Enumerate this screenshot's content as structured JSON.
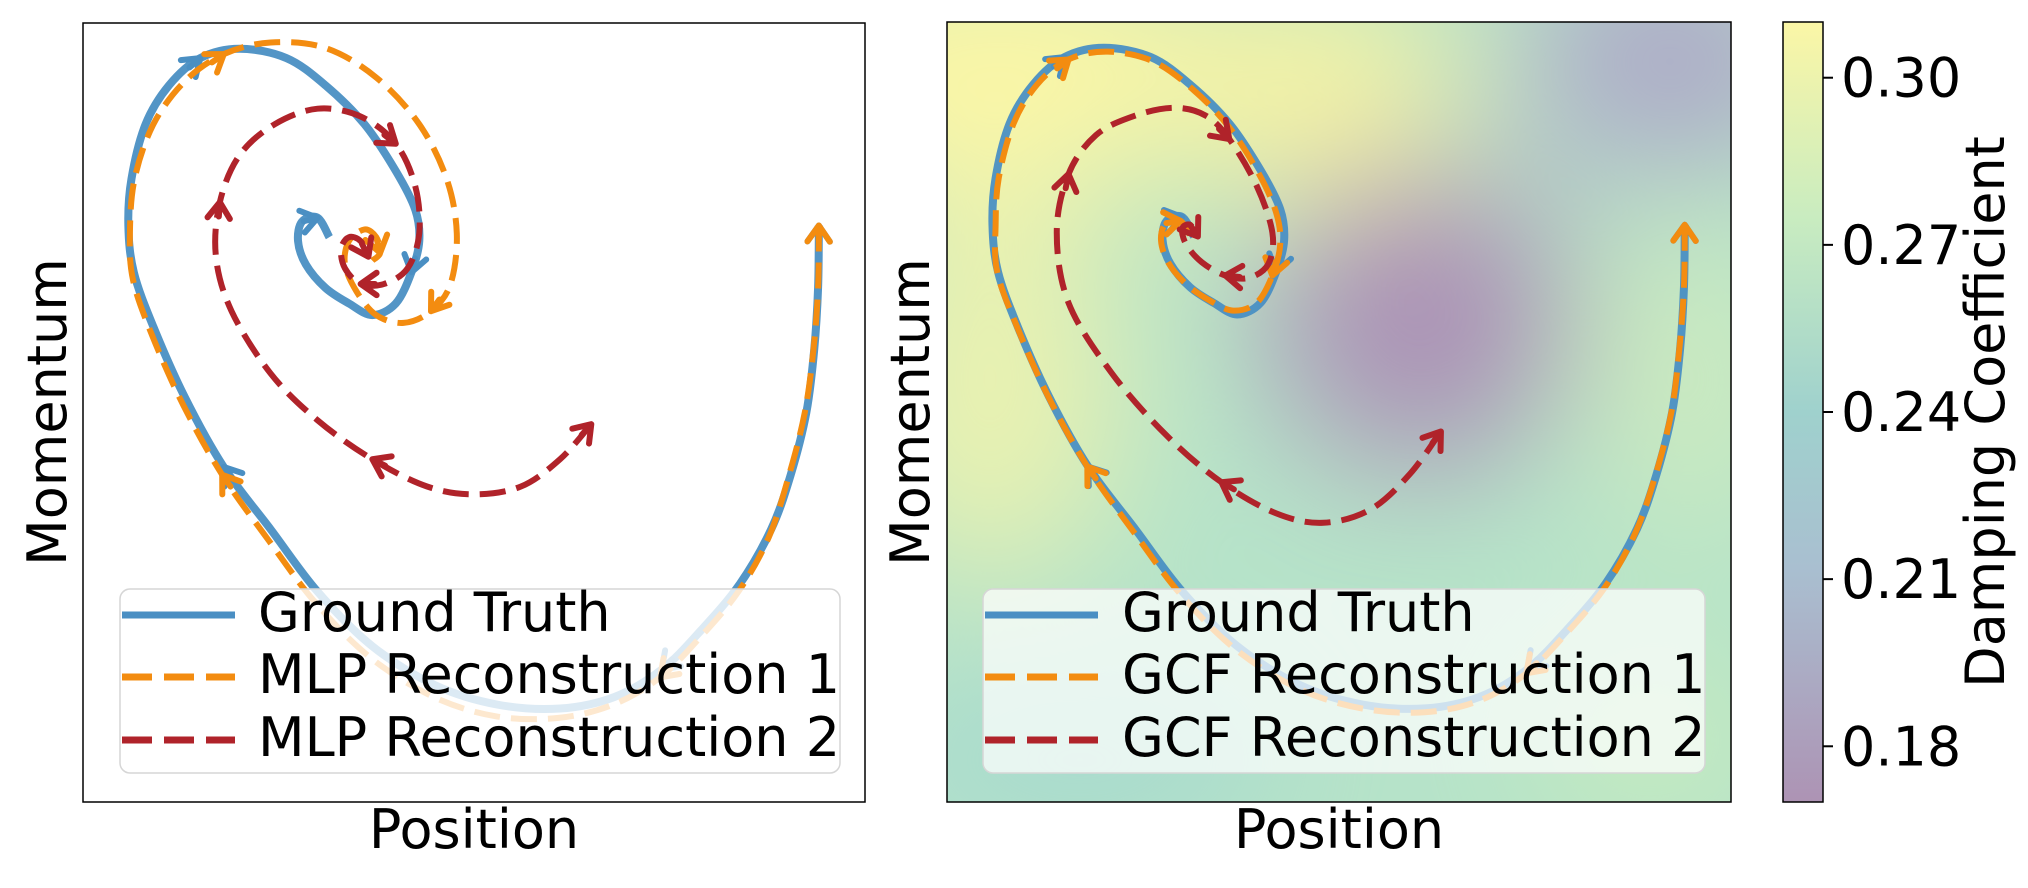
{
  "colors": {
    "ground_truth": "#4a8fc3",
    "reconstruction_1": "#f38c10",
    "reconstruction_2": "#b0232a",
    "colormap": [
      "#ad93b4",
      "#9dc6d0",
      "#a9dcc9",
      "#cdeec2",
      "#faf5a7"
    ]
  },
  "chart_data": [
    {
      "type": "line",
      "panel": "left",
      "xlabel": "Position",
      "ylabel": "Momentum",
      "xticks": "none",
      "yticks": "none",
      "grid": false,
      "legend_position": "lower-center",
      "legend": [
        "Ground Truth",
        "MLP Reconstruction 1",
        "MLP Reconstruction 2"
      ],
      "xlim": [
        0,
        1
      ],
      "ylim": [
        0,
        1
      ],
      "series": [
        {
          "name": "Ground Truth",
          "style": "solid",
          "x": [
            0.941,
            0.94,
            0.935,
            0.925,
            0.905,
            0.88,
            0.84,
            0.79,
            0.74,
            0.68,
            0.61,
            0.53,
            0.45,
            0.37,
            0.3,
            0.24,
            0.18,
            0.13,
            0.09,
            0.065,
            0.058,
            0.062,
            0.08,
            0.11,
            0.15,
            0.2,
            0.26,
            0.31,
            0.36,
            0.4,
            0.425,
            0.43,
            0.42,
            0.4,
            0.37,
            0.34,
            0.31,
            0.285,
            0.275,
            0.28,
            0.3,
            0.315
          ],
          "y": [
            0.74,
            0.66,
            0.58,
            0.5,
            0.42,
            0.35,
            0.28,
            0.22,
            0.17,
            0.135,
            0.12,
            0.125,
            0.15,
            0.2,
            0.27,
            0.35,
            0.43,
            0.52,
            0.61,
            0.68,
            0.74,
            0.8,
            0.87,
            0.92,
            0.955,
            0.967,
            0.955,
            0.92,
            0.87,
            0.81,
            0.76,
            0.72,
            0.68,
            0.64,
            0.625,
            0.64,
            0.66,
            0.69,
            0.72,
            0.745,
            0.75,
            0.725
          ]
        },
        {
          "name": "MLP Reconstruction 1",
          "style": "dashed",
          "x": [
            0.941,
            0.94,
            0.934,
            0.923,
            0.903,
            0.877,
            0.838,
            0.788,
            0.738,
            0.678,
            0.608,
            0.528,
            0.448,
            0.368,
            0.298,
            0.238,
            0.178,
            0.128,
            0.088,
            0.064,
            0.06,
            0.066,
            0.09,
            0.13,
            0.18,
            0.24,
            0.31,
            0.375,
            0.43,
            0.465,
            0.478,
            0.47,
            0.445,
            0.41,
            0.375,
            0.35,
            0.335,
            0.34,
            0.36,
            0.375,
            0.38,
            0.37
          ],
          "y": [
            0.74,
            0.66,
            0.58,
            0.5,
            0.42,
            0.34,
            0.27,
            0.21,
            0.16,
            0.125,
            0.108,
            0.11,
            0.135,
            0.185,
            0.255,
            0.335,
            0.42,
            0.51,
            0.6,
            0.67,
            0.73,
            0.8,
            0.87,
            0.925,
            0.96,
            0.975,
            0.968,
            0.93,
            0.87,
            0.8,
            0.73,
            0.665,
            0.63,
            0.615,
            0.625,
            0.655,
            0.69,
            0.72,
            0.735,
            0.725,
            0.705,
            0.695
          ]
        },
        {
          "name": "MLP Reconstruction 2",
          "style": "dashed",
          "x": [
            0.65,
            0.61,
            0.56,
            0.5,
            0.44,
            0.37,
            0.3,
            0.24,
            0.19,
            0.17,
            0.175,
            0.2,
            0.245,
            0.3,
            0.355,
            0.4,
            0.425,
            0.43,
            0.415,
            0.385,
            0.355,
            0.335,
            0.33,
            0.34,
            0.355,
            0.365
          ],
          "y": [
            0.485,
            0.44,
            0.405,
            0.395,
            0.405,
            0.44,
            0.49,
            0.55,
            0.63,
            0.7,
            0.77,
            0.83,
            0.87,
            0.89,
            0.88,
            0.845,
            0.79,
            0.73,
            0.685,
            0.665,
            0.665,
            0.685,
            0.71,
            0.725,
            0.72,
            0.7
          ]
        }
      ]
    },
    {
      "type": "line",
      "panel": "right",
      "xlabel": "Position",
      "ylabel": "Momentum",
      "xticks": "none",
      "yticks": "none",
      "grid": false,
      "legend_position": "lower-center",
      "legend": [
        "Ground Truth",
        "GCF Reconstruction 1",
        "GCF Reconstruction 2"
      ],
      "xlim": [
        0,
        1
      ],
      "ylim": [
        0,
        1
      ],
      "background": "damping-coefficient field (heatmap)",
      "series": [
        {
          "name": "Ground Truth",
          "style": "solid",
          "x": [
            0.941,
            0.94,
            0.935,
            0.925,
            0.905,
            0.88,
            0.84,
            0.79,
            0.74,
            0.68,
            0.61,
            0.53,
            0.45,
            0.37,
            0.3,
            0.24,
            0.18,
            0.13,
            0.09,
            0.065,
            0.058,
            0.062,
            0.08,
            0.11,
            0.15,
            0.2,
            0.26,
            0.31,
            0.36,
            0.4,
            0.425,
            0.43,
            0.42,
            0.4,
            0.37,
            0.34,
            0.31,
            0.285,
            0.275,
            0.28,
            0.3,
            0.315
          ],
          "y": [
            0.74,
            0.66,
            0.58,
            0.5,
            0.42,
            0.35,
            0.28,
            0.22,
            0.17,
            0.135,
            0.12,
            0.125,
            0.15,
            0.2,
            0.27,
            0.35,
            0.43,
            0.52,
            0.61,
            0.68,
            0.74,
            0.8,
            0.87,
            0.92,
            0.955,
            0.967,
            0.955,
            0.92,
            0.87,
            0.81,
            0.76,
            0.72,
            0.68,
            0.64,
            0.625,
            0.64,
            0.66,
            0.69,
            0.72,
            0.745,
            0.75,
            0.725
          ]
        },
        {
          "name": "GCF Reconstruction 1",
          "style": "dashed",
          "x": [
            0.941,
            0.94,
            0.934,
            0.924,
            0.904,
            0.878,
            0.839,
            0.789,
            0.739,
            0.679,
            0.609,
            0.529,
            0.449,
            0.369,
            0.299,
            0.239,
            0.179,
            0.129,
            0.089,
            0.064,
            0.062,
            0.066,
            0.085,
            0.115,
            0.155,
            0.205,
            0.262,
            0.312,
            0.36,
            0.398,
            0.42,
            0.425,
            0.415,
            0.395,
            0.365,
            0.335,
            0.305,
            0.282,
            0.273,
            0.279,
            0.298,
            0.312
          ],
          "y": [
            0.74,
            0.66,
            0.58,
            0.5,
            0.42,
            0.345,
            0.275,
            0.215,
            0.165,
            0.13,
            0.115,
            0.12,
            0.145,
            0.195,
            0.265,
            0.345,
            0.43,
            0.52,
            0.61,
            0.68,
            0.74,
            0.8,
            0.87,
            0.92,
            0.952,
            0.962,
            0.95,
            0.915,
            0.865,
            0.805,
            0.755,
            0.715,
            0.675,
            0.64,
            0.63,
            0.643,
            0.664,
            0.692,
            0.72,
            0.742,
            0.745,
            0.722
          ]
        },
        {
          "name": "GCF Reconstruction 2",
          "style": "dashed",
          "x": [
            0.63,
            0.59,
            0.54,
            0.48,
            0.42,
            0.35,
            0.28,
            0.21,
            0.155,
            0.14,
            0.155,
            0.19,
            0.24,
            0.29,
            0.33,
            0.36,
            0.395,
            0.415,
            0.41,
            0.385,
            0.355,
            0.325,
            0.305,
            0.3,
            0.31,
            0.32
          ],
          "y": [
            0.475,
            0.42,
            0.375,
            0.358,
            0.37,
            0.41,
            0.47,
            0.55,
            0.64,
            0.73,
            0.805,
            0.855,
            0.88,
            0.89,
            0.88,
            0.85,
            0.79,
            0.73,
            0.69,
            0.672,
            0.675,
            0.692,
            0.715,
            0.735,
            0.74,
            0.725
          ]
        }
      ]
    },
    {
      "type": "heatmap",
      "panel": "colorbar",
      "label": "Damping Coefficient",
      "range": [
        0.17,
        0.31
      ],
      "ticks": [
        "0.30",
        "0.27",
        "0.24",
        "0.21",
        "0.18"
      ],
      "tick_values": [
        0.3,
        0.27,
        0.24,
        0.21,
        0.18
      ],
      "field_lows": [
        {
          "x": 0.6,
          "y": 0.6,
          "value": 0.175
        },
        {
          "x": 0.83,
          "y": 0.99,
          "value": 0.21
        },
        {
          "x": 0.85,
          "y": 0.2,
          "value": 0.245
        }
      ],
      "field_highs": [
        {
          "x": 0.06,
          "y": 0.98,
          "value": 0.305
        },
        {
          "x": 0.45,
          "y": 0.9,
          "value": 0.3
        },
        {
          "x": 0.05,
          "y": 0.55,
          "value": 0.285
        },
        {
          "x": 0.92,
          "y": 0.55,
          "value": 0.27
        }
      ]
    }
  ]
}
